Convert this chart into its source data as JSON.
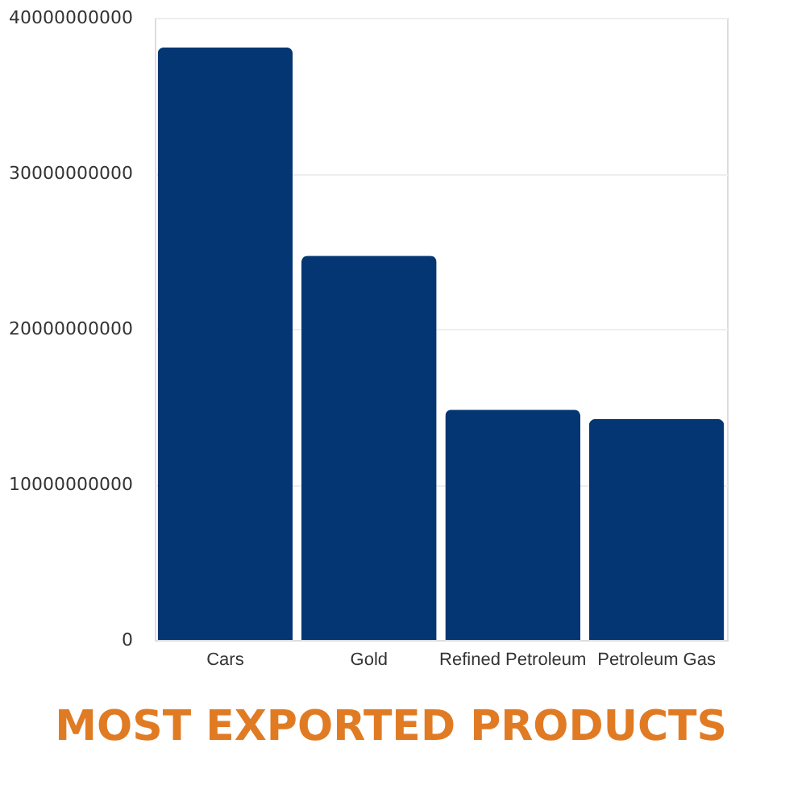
{
  "chart_data": {
    "type": "bar",
    "title": "MOST EXPORTED PRODUCTS",
    "categories": [
      "Cars",
      "Gold",
      "Refined Petroleum",
      "Petroleum Gas"
    ],
    "values": [
      38100000000,
      24700000000,
      14800000000,
      14200000000
    ],
    "color": "#043673",
    "ylim": [
      0,
      40000000000
    ],
    "yticks": [
      0,
      10000000000,
      20000000000,
      30000000000,
      40000000000
    ],
    "grid": "y"
  }
}
